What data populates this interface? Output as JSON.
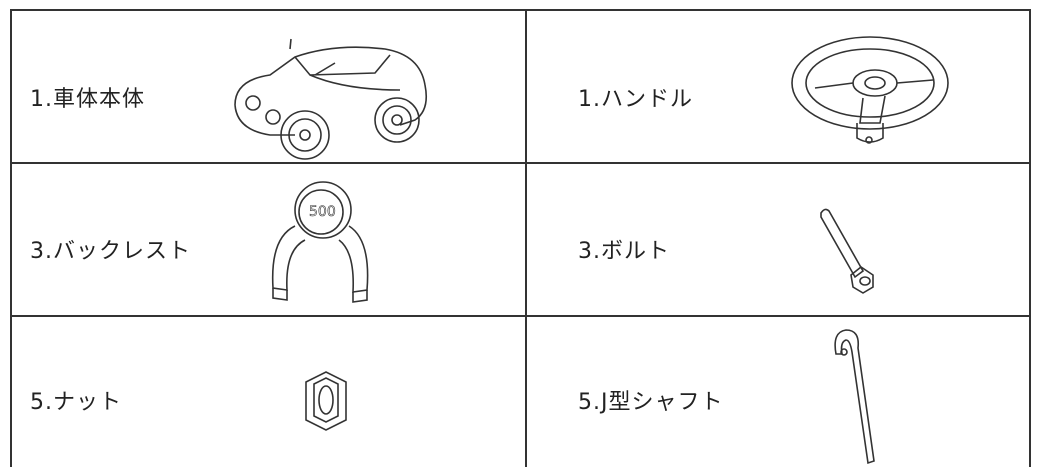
{
  "table": {
    "rows": [
      [
        "1.車体本体",
        "1.ハンドル"
      ],
      [
        "3.バックレスト",
        "3.ボルト"
      ],
      [
        "5.ナット",
        "5.J型シャフト"
      ]
    ]
  }
}
